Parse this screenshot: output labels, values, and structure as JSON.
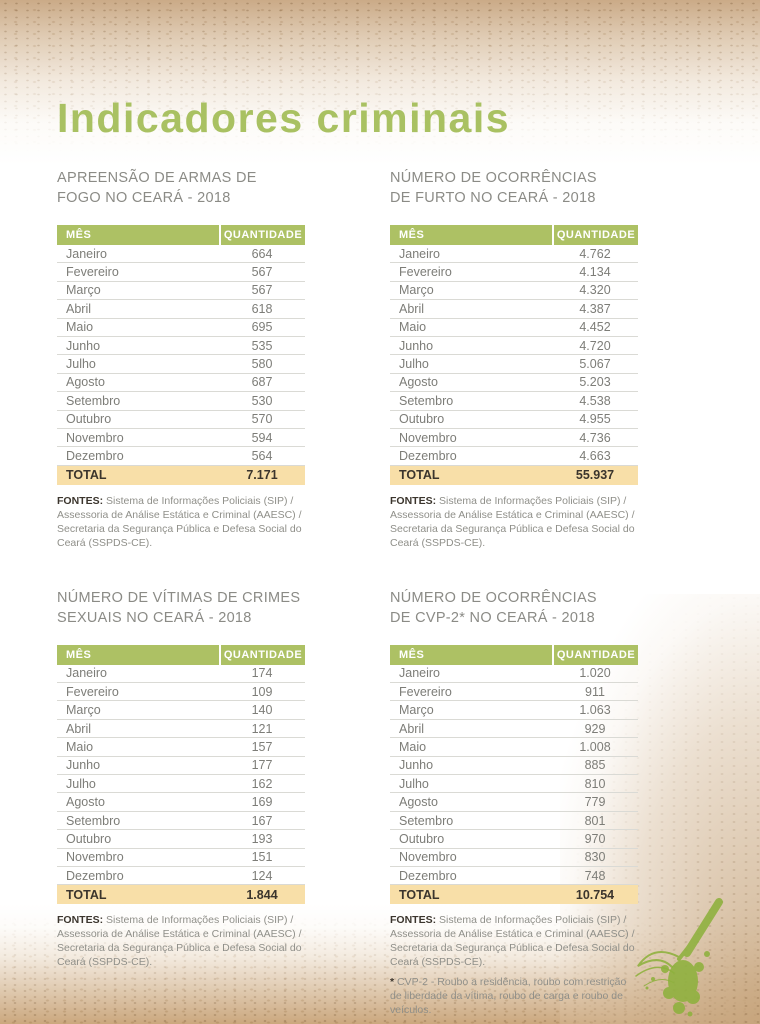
{
  "theme": {
    "accent_green": "#a9c162",
    "table_header_green": "#adc164",
    "total_row_tan": "#f8dfa8"
  },
  "page": {
    "title": "Indicadores criminais"
  },
  "labels": {
    "month_header": "MÊS",
    "quantity_header": "QUANTIDADE",
    "total_label": "TOTAL"
  },
  "months": [
    "Janeiro",
    "Fevereiro",
    "Março",
    "Abril",
    "Maio",
    "Junho",
    "Julho",
    "Agosto",
    "Setembro",
    "Outubro",
    "Novembro",
    "Dezembro"
  ],
  "fontes": {
    "label": "FONTES:",
    "text": " Sistema de Informações Policiais (SIP) / Assessoria de Análise Estática e Criminal (AAESC) / Secretaria da Segurança Pública e Defesa Social do Ceará (SSPDS-CE)."
  },
  "sections": [
    {
      "title_line1": "APREENSÃO DE ARMAS DE",
      "title_line2": "FOGO NO CEARÁ - 2018",
      "values": [
        "664",
        "567",
        "567",
        "618",
        "695",
        "535",
        "580",
        "687",
        "530",
        "570",
        "594",
        "564"
      ],
      "total": "7.171"
    },
    {
      "title_line1": "NÚMERO DE OCORRÊNCIAS",
      "title_line2": "DE FURTO NO CEARÁ - 2018",
      "values": [
        "4.762",
        "4.134",
        "4.320",
        "4.387",
        "4.452",
        "4.720",
        "5.067",
        "5.203",
        "4.538",
        "4.955",
        "4.736",
        "4.663"
      ],
      "total": "55.937"
    },
    {
      "title_line1": "NÚMERO DE VÍTIMAS DE CRIMES",
      "title_line2": "SEXUAIS NO CEARÁ - 2018",
      "values": [
        "174",
        "109",
        "140",
        "121",
        "157",
        "177",
        "162",
        "169",
        "167",
        "193",
        "151",
        "124"
      ],
      "total": "1.844"
    },
    {
      "title_line1": "NÚMERO DE OCORRÊNCIAS",
      "title_line2": "DE CVP-2* NO CEARÁ - 2018",
      "values": [
        "1.020",
        "911",
        "1.063",
        "929",
        "1.008",
        "885",
        "810",
        "779",
        "801",
        "970",
        "830",
        "748"
      ],
      "total": "10.754",
      "footnote_marker": "*",
      "footnote_text": " CVP-2 - Roubo a residência, roubo com restrição de liberdade da vítima, roubo de carga e roubo de veículos."
    }
  ],
  "decor": {
    "splatter": "green-paint-splatter"
  }
}
